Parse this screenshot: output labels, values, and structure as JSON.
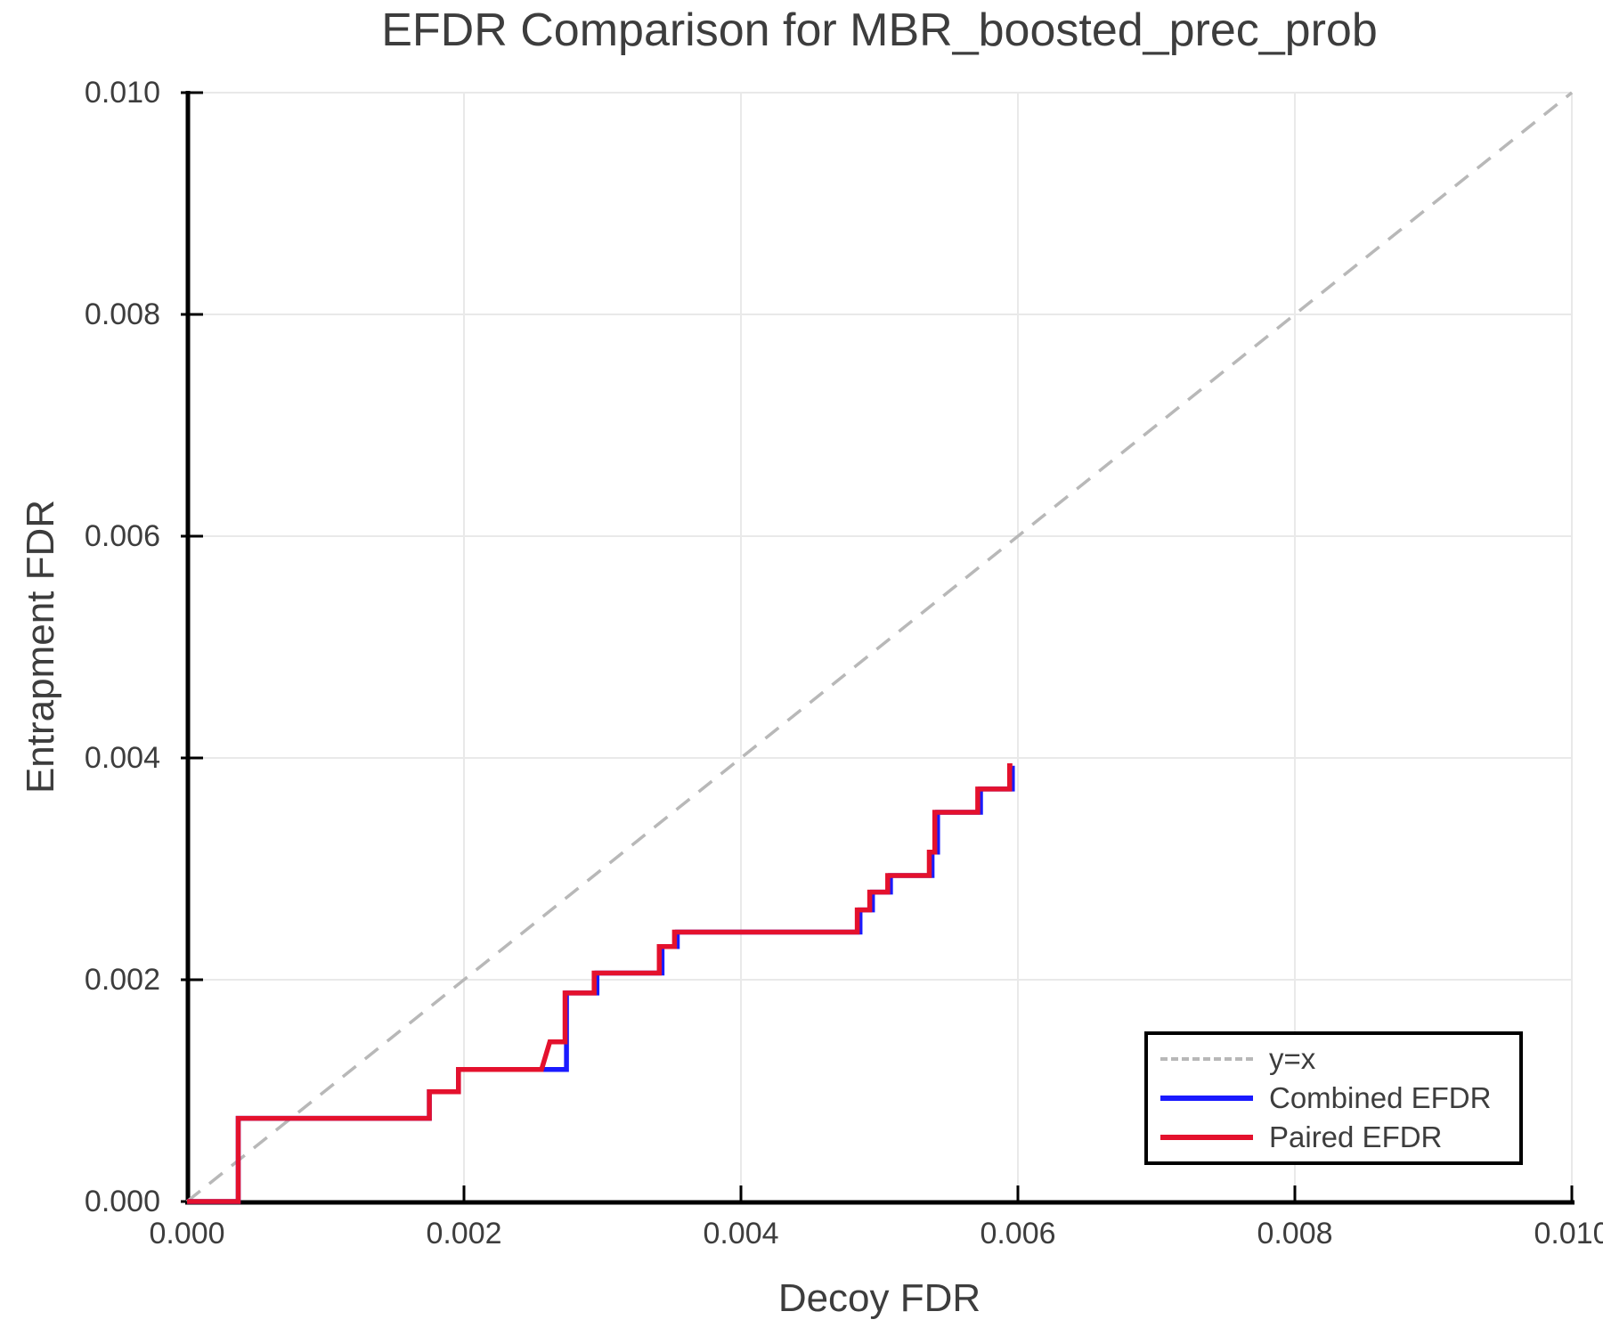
{
  "title": "EFDR Comparison for MBR_boosted_prec_prob",
  "axes": {
    "x": {
      "label": "Decoy FDR",
      "range": [
        0,
        0.01
      ],
      "tick_values": [
        0,
        0.002,
        0.004,
        0.006,
        0.008,
        0.01
      ],
      "tick_labels": [
        "0.000",
        "0.002",
        "0.004",
        "0.006",
        "0.008",
        "0.010"
      ]
    },
    "y": {
      "label": "Entrapment FDR",
      "range": [
        0,
        0.01
      ],
      "tick_values": [
        0,
        0.002,
        0.004,
        0.006,
        0.008,
        0.01
      ],
      "tick_labels": [
        "0.000",
        "0.002",
        "0.004",
        "0.006",
        "0.008",
        "0.010"
      ]
    }
  },
  "colors": {
    "identity_line": "#b8b8b8",
    "combined": "#1a1aff",
    "paired": "#e4112d",
    "grid": "#e9e9e9",
    "axis": "#000000",
    "text": "#3d3d3d"
  },
  "legend": {
    "position": "bottom-right",
    "entries": [
      {
        "label": "y=x",
        "style": "dashed",
        "color": "#b8b8b8"
      },
      {
        "label": "Combined EFDR",
        "style": "solid",
        "color": "#1a1aff"
      },
      {
        "label": "Paired EFDR",
        "style": "solid",
        "color": "#e4112d"
      }
    ]
  },
  "chart_data": {
    "type": "line",
    "title": "EFDR Comparison for MBR_boosted_prec_prob",
    "xlabel": "Decoy FDR",
    "ylabel": "Entrapment FDR",
    "xlim": [
      0,
      0.01
    ],
    "ylim": [
      0,
      0.01
    ],
    "grid": true,
    "legend_position": "bottom-right",
    "series": [
      {
        "name": "y=x",
        "style": "dashed",
        "color": "#b8b8b8",
        "points": [
          [
            0,
            0
          ],
          [
            0.01,
            0.01
          ]
        ]
      },
      {
        "name": "Combined EFDR",
        "style": "solid",
        "color": "#1a1aff",
        "points": [
          [
            0.0,
            0.0
          ],
          [
            0.00037,
            0.0
          ],
          [
            0.00037,
            0.00075
          ],
          [
            0.00175,
            0.00075
          ],
          [
            0.00175,
            0.00099
          ],
          [
            0.00196,
            0.00099
          ],
          [
            0.00196,
            0.00119
          ],
          [
            0.00274,
            0.00119
          ],
          [
            0.00274,
            0.00188
          ],
          [
            0.00296,
            0.00188
          ],
          [
            0.00296,
            0.00206
          ],
          [
            0.00343,
            0.00206
          ],
          [
            0.00343,
            0.0023
          ],
          [
            0.00354,
            0.0023
          ],
          [
            0.00354,
            0.00243
          ],
          [
            0.00486,
            0.00243
          ],
          [
            0.00486,
            0.00263
          ],
          [
            0.00495,
            0.00263
          ],
          [
            0.00495,
            0.00279
          ],
          [
            0.00508,
            0.00279
          ],
          [
            0.00508,
            0.00294
          ],
          [
            0.00538,
            0.00294
          ],
          [
            0.00538,
            0.00315
          ],
          [
            0.00542,
            0.00315
          ],
          [
            0.00542,
            0.00351
          ],
          [
            0.00573,
            0.00351
          ],
          [
            0.00573,
            0.00372
          ],
          [
            0.00596,
            0.00372
          ],
          [
            0.00596,
            0.00393
          ]
        ]
      },
      {
        "name": "Paired EFDR",
        "style": "solid",
        "color": "#e4112d",
        "points": [
          [
            0.0,
            0.0
          ],
          [
            0.00037,
            0.0
          ],
          [
            0.00037,
            0.00075
          ],
          [
            0.00175,
            0.00075
          ],
          [
            0.00175,
            0.00099
          ],
          [
            0.00196,
            0.00099
          ],
          [
            0.00196,
            0.00119
          ],
          [
            0.00256,
            0.00119
          ],
          [
            0.00262,
            0.00144
          ],
          [
            0.00273,
            0.00144
          ],
          [
            0.00273,
            0.00188
          ],
          [
            0.00294,
            0.00188
          ],
          [
            0.00294,
            0.00206
          ],
          [
            0.00341,
            0.00206
          ],
          [
            0.00341,
            0.0023
          ],
          [
            0.00352,
            0.0023
          ],
          [
            0.00352,
            0.00243
          ],
          [
            0.00484,
            0.00243
          ],
          [
            0.00484,
            0.00263
          ],
          [
            0.00493,
            0.00263
          ],
          [
            0.00493,
            0.00279
          ],
          [
            0.00506,
            0.00279
          ],
          [
            0.00506,
            0.00294
          ],
          [
            0.00536,
            0.00294
          ],
          [
            0.00536,
            0.00315
          ],
          [
            0.0054,
            0.00315
          ],
          [
            0.0054,
            0.00351
          ],
          [
            0.00571,
            0.00351
          ],
          [
            0.00571,
            0.00372
          ],
          [
            0.00594,
            0.00372
          ],
          [
            0.00594,
            0.00393
          ],
          [
            0.00596,
            0.00393
          ]
        ]
      }
    ]
  }
}
